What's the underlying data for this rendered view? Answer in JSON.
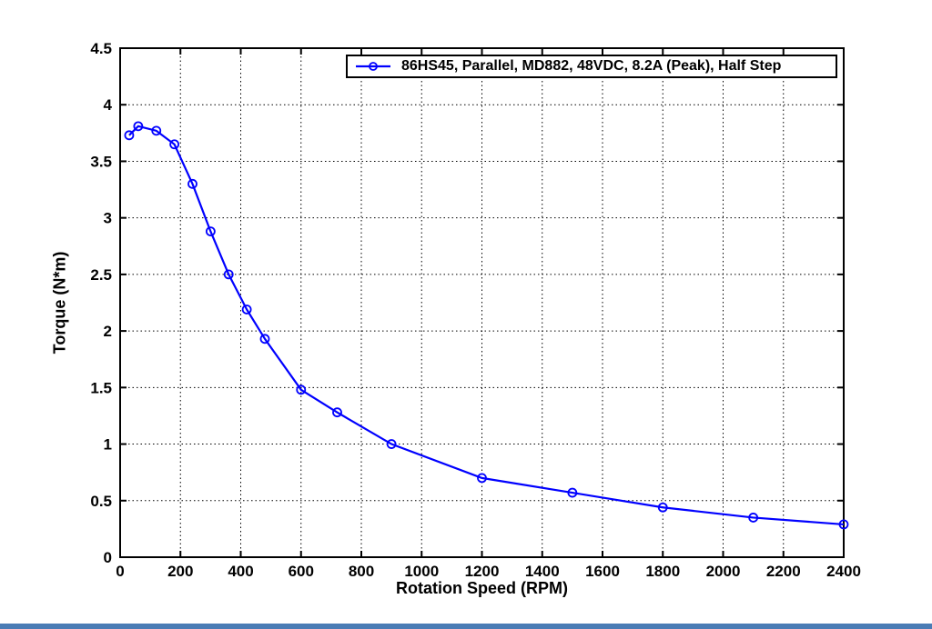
{
  "figure": {
    "background": "#ffffff",
    "accent_bar_color": "#4a7cb5",
    "frame_color": "#000000",
    "grid_color": "#000000"
  },
  "chart_data": {
    "type": "line",
    "title": "",
    "xlabel": "Rotation Speed (RPM)",
    "ylabel": "Torque (N*m)",
    "xlim": [
      0,
      2400
    ],
    "ylim": [
      0,
      4.5
    ],
    "x_ticks": [
      0,
      200,
      400,
      600,
      800,
      1000,
      1200,
      1400,
      1600,
      1800,
      2000,
      2200,
      2400
    ],
    "y_ticks": [
      0,
      0.5,
      1,
      1.5,
      2,
      2.5,
      3,
      3.5,
      4,
      4.5
    ],
    "grid": "dotted",
    "legend_position": "top-right",
    "series": [
      {
        "name": "86HS45, Parallel, MD882, 48VDC, 8.2A (Peak), Half Step",
        "color": "#0000FF",
        "marker": "circle-open",
        "x": [
          30,
          60,
          120,
          180,
          240,
          300,
          360,
          420,
          480,
          600,
          720,
          900,
          1200,
          1500,
          1800,
          2100,
          2400
        ],
        "y": [
          3.73,
          3.81,
          3.77,
          3.65,
          3.3,
          2.88,
          2.5,
          2.19,
          1.93,
          1.48,
          1.28,
          1.0,
          0.7,
          0.57,
          0.44,
          0.35,
          0.29
        ]
      }
    ]
  }
}
